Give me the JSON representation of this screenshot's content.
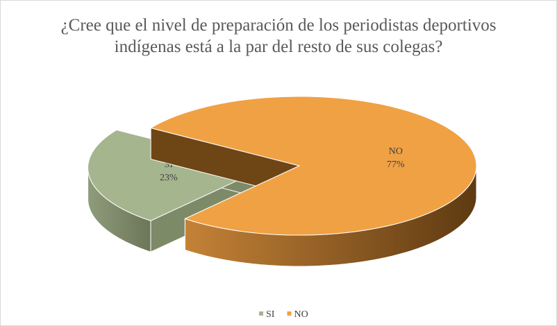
{
  "chart_data": {
    "type": "pie",
    "title": "¿Cree que el nivel de preparación de los periodistas deportivos indígenas está a la par del resto de sus colegas?",
    "categories": [
      "SI",
      "NO"
    ],
    "values": [
      23,
      77
    ],
    "value_labels": [
      "23%",
      "77%"
    ],
    "colors": [
      "#a5b58e",
      "#f0a144"
    ],
    "legend": "bottom"
  }
}
